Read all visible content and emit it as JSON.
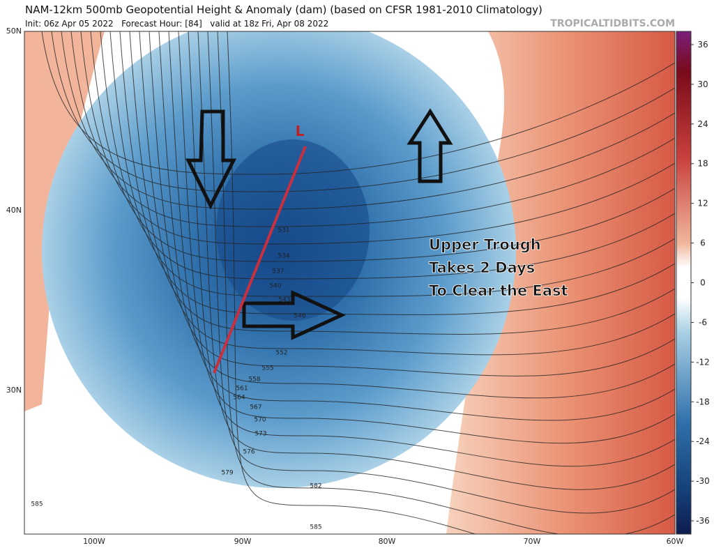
{
  "header": {
    "title": "NAM-12km 500mb Geopotential Height & Anomaly (dam) (based on CFSR 1981-2010 Climatology)",
    "subtitle": "Init: 06z Apr 05 2022   Forecast Hour: [84]   valid at 18z Fri, Apr 08 2022",
    "site": "TROPICALTIDBITS.COM"
  },
  "map": {
    "lat_labels": [
      "50N",
      "40N",
      "30N"
    ],
    "lon_labels": [
      "100W",
      "90W",
      "80W",
      "70W",
      "60W"
    ],
    "contour_labels": [
      "531",
      "534",
      "537",
      "540",
      "543",
      "546",
      "552",
      "555",
      "558",
      "561",
      "564",
      "567",
      "570",
      "573",
      "576",
      "579",
      "582",
      "585",
      "585"
    ],
    "low_label": "L",
    "annotation": [
      "Upper Trough",
      "Takes 2 Days",
      "To Clear the East"
    ]
  },
  "colorbar": {
    "lim": [
      -38,
      38
    ],
    "ticks": [
      36,
      30,
      24,
      18,
      12,
      6,
      0,
      -6,
      -12,
      -18,
      -24,
      -30,
      -36
    ]
  }
}
